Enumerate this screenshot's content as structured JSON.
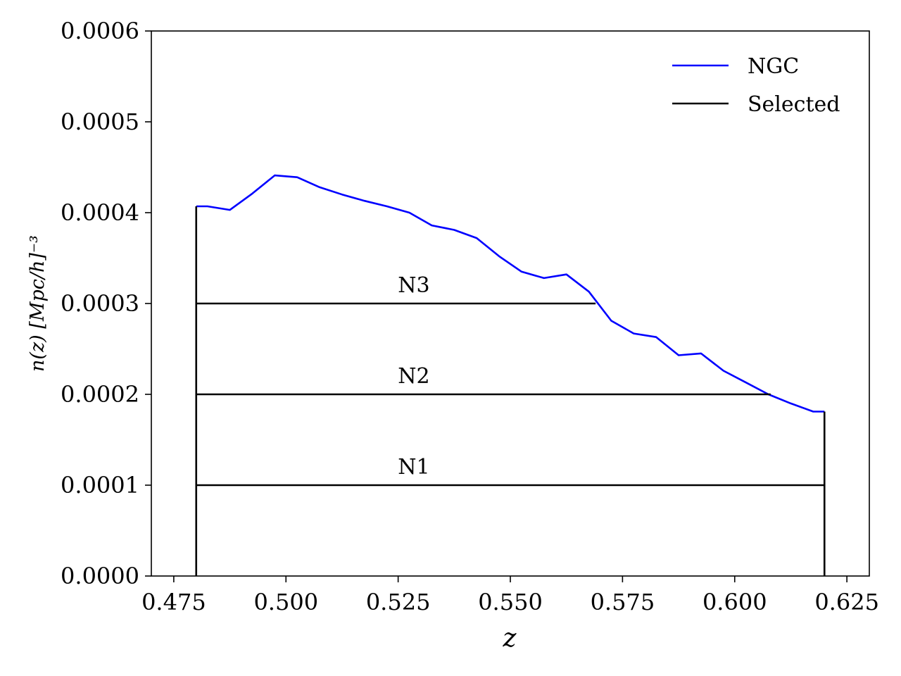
{
  "chart_data": {
    "type": "line",
    "xlabel": "z",
    "ylabel": "n(z) [Mpc/h]⁻³",
    "xlim": [
      0.47,
      0.63
    ],
    "ylim": [
      0.0,
      0.0006
    ],
    "xticks": [
      "0.475",
      "0.500",
      "0.525",
      "0.550",
      "0.575",
      "0.600",
      "0.625"
    ],
    "xtick_values": [
      0.475,
      0.5,
      0.525,
      0.55,
      0.575,
      0.6,
      0.625
    ],
    "yticks": [
      "0.0000",
      "0.0001",
      "0.0002",
      "0.0003",
      "0.0004",
      "0.0005",
      "0.0006"
    ],
    "ytick_values": [
      0.0,
      0.0001,
      0.0002,
      0.0003,
      0.0004,
      0.0005,
      0.0006
    ],
    "grid": false,
    "legend_position": "top-right",
    "legend": [
      {
        "name": "NGC",
        "color": "#0000ff"
      },
      {
        "name": "Selected",
        "color": "#000000"
      }
    ],
    "series": [
      {
        "name": "NGC",
        "color": "#0000ff",
        "x": [
          0.48,
          0.4825,
          0.4875,
          0.4925,
          0.4975,
          0.5025,
          0.5075,
          0.5125,
          0.5175,
          0.5225,
          0.5275,
          0.5325,
          0.5375,
          0.5425,
          0.5475,
          0.5525,
          0.5575,
          0.5625,
          0.5675,
          0.5725,
          0.5775,
          0.5825,
          0.5875,
          0.5925,
          0.5975,
          0.6025,
          0.6075,
          0.6125,
          0.6175,
          0.62
        ],
        "y": [
          0.000407,
          0.000407,
          0.000403,
          0.000421,
          0.000441,
          0.000439,
          0.000428,
          0.00042,
          0.000413,
          0.000407,
          0.0004,
          0.000386,
          0.000381,
          0.000372,
          0.000352,
          0.000335,
          0.000328,
          0.000332,
          0.000313,
          0.000281,
          0.000267,
          0.000263,
          0.000243,
          0.000245,
          0.000226,
          0.000213,
          0.0002,
          0.00019,
          0.000181,
          0.000181
        ]
      },
      {
        "name": "Selected",
        "color": "#000000",
        "segments": [
          {
            "x": [
              0.48,
              0.48
            ],
            "y": [
              0.0,
              0.000407
            ]
          },
          {
            "x": [
              0.62,
              0.62
            ],
            "y": [
              0.0,
              0.000181
            ]
          },
          {
            "x": [
              0.48,
              0.62
            ],
            "y": [
              0.0001,
              0.0001
            ]
          },
          {
            "x": [
              0.48,
              0.608
            ],
            "y": [
              0.0002,
              0.0002
            ]
          },
          {
            "x": [
              0.48,
              0.569
            ],
            "y": [
              0.0003,
              0.0003
            ]
          }
        ]
      }
    ],
    "annotations": [
      {
        "text": "N1",
        "x": 0.5285,
        "y": 0.0001
      },
      {
        "text": "N2",
        "x": 0.5285,
        "y": 0.0002
      },
      {
        "text": "N3",
        "x": 0.5285,
        "y": 0.0003
      }
    ]
  }
}
